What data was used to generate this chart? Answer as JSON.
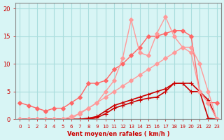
{
  "background_color": "#d8f5f5",
  "grid_color": "#aadddd",
  "x_values": [
    0,
    1,
    2,
    3,
    4,
    5,
    6,
    7,
    8,
    9,
    10,
    11,
    12,
    13,
    14,
    15,
    16,
    17,
    18,
    19,
    20,
    21,
    22,
    23
  ],
  "series": [
    {
      "name": "line1_dark",
      "color": "#cc0000",
      "linewidth": 1.2,
      "marker": "+",
      "markersize": 4,
      "y": [
        0,
        0,
        0,
        0,
        0,
        0,
        0,
        0,
        0,
        0.3,
        1,
        2,
        2.5,
        3,
        3.5,
        3.8,
        4,
        5,
        6.5,
        6.5,
        6.5,
        5,
        0.2,
        0
      ]
    },
    {
      "name": "line2_dark",
      "color": "#cc0000",
      "linewidth": 1.2,
      "marker": "+",
      "markersize": 4,
      "y": [
        0,
        0,
        0,
        0,
        0,
        0,
        0,
        0,
        0.2,
        0.5,
        1.5,
        2.5,
        3,
        3.5,
        4,
        4.5,
        5,
        5.5,
        6.5,
        6.5,
        5,
        5,
        3.5,
        0
      ]
    },
    {
      "name": "line3_medium",
      "color": "#ff6666",
      "linewidth": 1.0,
      "marker": "D",
      "markersize": 3,
      "y": [
        3,
        2.5,
        2,
        1.5,
        2,
        2,
        3,
        4,
        6.5,
        6.5,
        7,
        9,
        10,
        11.5,
        13,
        15,
        15,
        15.5,
        16,
        16,
        15,
        5,
        3,
        3
      ]
    },
    {
      "name": "line4_light",
      "color": "#ff9999",
      "linewidth": 1.0,
      "marker": "D",
      "markersize": 3,
      "y": [
        0,
        0,
        0,
        0,
        0,
        0,
        0,
        1.2,
        2,
        3,
        4,
        5,
        6,
        7,
        8,
        9,
        10,
        11,
        12,
        13,
        13,
        10,
        5,
        0
      ]
    },
    {
      "name": "line5_light",
      "color": "#ff9999",
      "linewidth": 1.0,
      "marker": "D",
      "markersize": 3,
      "y": [
        0,
        0,
        0,
        0,
        0,
        0,
        0.5,
        1,
        2,
        3,
        5,
        7,
        11,
        18,
        12,
        11.5,
        15.5,
        18.5,
        15,
        13,
        12,
        5,
        3,
        0
      ]
    }
  ],
  "xlim": [
    -0.5,
    23.5
  ],
  "ylim": [
    0,
    21
  ],
  "yticks": [
    0,
    5,
    10,
    15,
    20
  ],
  "xticks": [
    0,
    1,
    2,
    3,
    4,
    5,
    6,
    7,
    8,
    9,
    10,
    11,
    12,
    13,
    14,
    15,
    16,
    17,
    18,
    19,
    20,
    21,
    22,
    23
  ],
  "xlabel": "Vent moyen/en rafales ( km/h )",
  "xlabel_color": "#cc0000",
  "tick_color": "#cc0000",
  "axis_color": "#888888",
  "arrow_color": "#cc0000"
}
